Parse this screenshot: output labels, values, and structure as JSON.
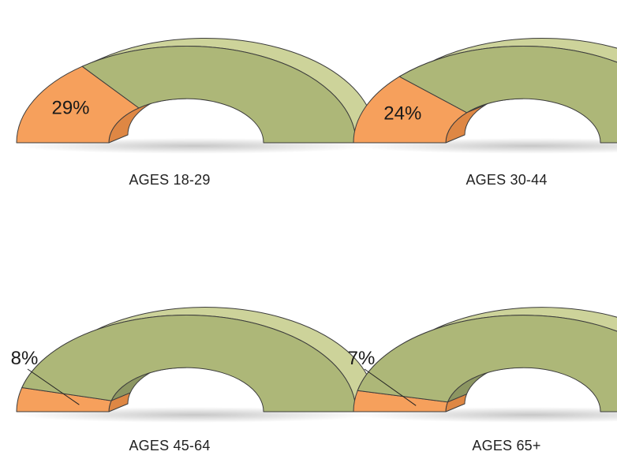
{
  "chart_data": [
    {
      "type": "pie",
      "variant": "3d-semicircle-donut",
      "category": "AGES 18-29",
      "value": 29,
      "value_label": "29%",
      "label_position": "inside"
    },
    {
      "type": "pie",
      "variant": "3d-semicircle-donut",
      "category": "AGES 30-44",
      "value": 24,
      "value_label": "24%",
      "label_position": "inside"
    },
    {
      "type": "pie",
      "variant": "3d-semicircle-donut",
      "category": "AGES 45-64",
      "value": 8,
      "value_label": "8%",
      "label_position": "outside"
    },
    {
      "type": "pie",
      "variant": "3d-semicircle-donut",
      "category": "AGES 65+",
      "value": 7,
      "value_label": "7%",
      "label_position": "outside"
    }
  ],
  "colors": {
    "highlight_face": "#f6a05c",
    "highlight_side": "#de8744",
    "rest_face": "#adb778",
    "rest_side": "#cdd39a",
    "rest_inner": "#8c9662",
    "edge": "#3c3c3c"
  }
}
